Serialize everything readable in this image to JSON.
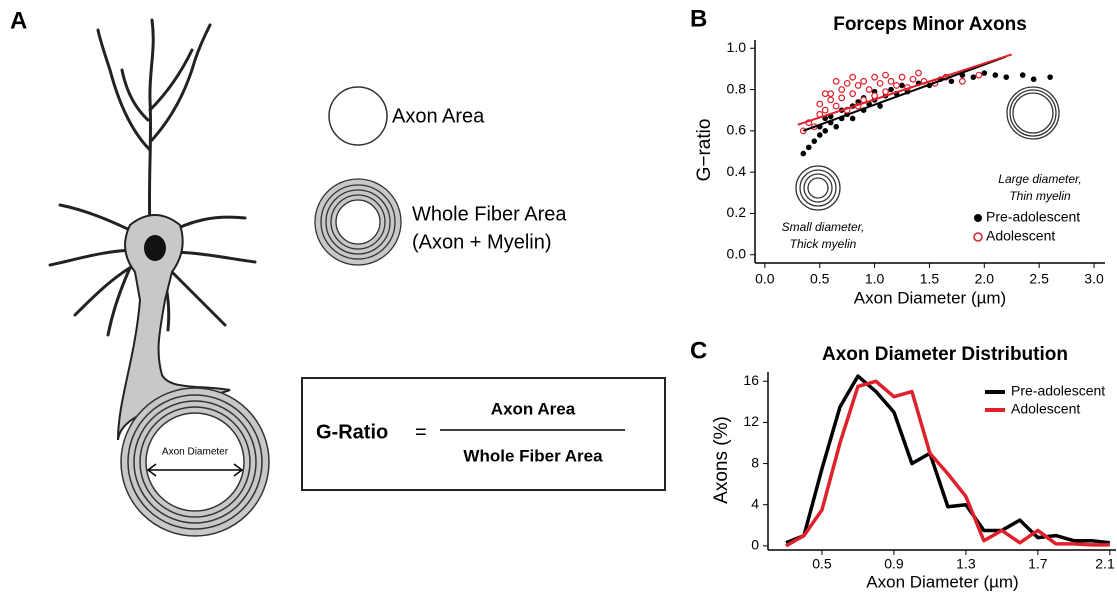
{
  "panel_labels": [
    "A",
    "B",
    "C"
  ],
  "diagram": {
    "axon_area_label": "Axon Area",
    "whole_fiber_label": "Whole Fiber Area",
    "whole_fiber_note": "(Axon + Myelin)",
    "axon_diameter_label": "Axon Diameter",
    "formula": {
      "lhs": "G-Ratio",
      "equals": "=",
      "numerator": "Axon Area",
      "denominator": "Whole Fiber Area"
    }
  },
  "chart_data": [
    {
      "type": "scatter",
      "title": "Forceps Minor Axons",
      "xlabel": "Axon Diameter (µm)",
      "ylabel": "G−ratio",
      "xlim": [
        -0.09,
        3.1
      ],
      "ylim": [
        -0.04,
        1.04
      ],
      "xticks": [
        {
          "value": 0,
          "label": "0.0"
        },
        0.5,
        {
          "value": 1,
          "label": "1.0"
        },
        1.5,
        {
          "value": 2,
          "label": "2.0"
        },
        2.5,
        {
          "value": 3,
          "label": "3.0"
        }
      ],
      "yticks": [
        {
          "value": 0,
          "label": "0.0"
        },
        0.2,
        0.4,
        0.6,
        0.8,
        {
          "value": 1,
          "label": "1.0"
        }
      ],
      "legend": "lower right",
      "series": [
        {
          "name": "Pre-adolescent",
          "color": "#000000",
          "marker": "filled",
          "x": [
            0.35,
            0.4,
            0.45,
            0.5,
            0.5,
            0.55,
            0.6,
            0.6,
            0.65,
            0.7,
            0.7,
            0.75,
            0.8,
            0.8,
            0.85,
            0.9,
            0.9,
            0.95,
            1.0,
            1.0,
            1.05,
            1.1,
            1.15,
            1.2,
            1.25,
            1.3,
            1.4,
            1.5,
            1.6,
            1.7,
            1.8,
            1.9,
            2.0,
            2.1,
            2.2,
            2.35,
            2.45,
            2.6,
            0.55,
            0.65
          ],
          "values": [
            0.49,
            0.52,
            0.55,
            0.58,
            0.62,
            0.6,
            0.64,
            0.67,
            0.62,
            0.66,
            0.7,
            0.68,
            0.72,
            0.66,
            0.74,
            0.7,
            0.76,
            0.73,
            0.75,
            0.79,
            0.72,
            0.77,
            0.8,
            0.78,
            0.82,
            0.79,
            0.83,
            0.82,
            0.85,
            0.84,
            0.87,
            0.86,
            0.88,
            0.87,
            0.86,
            0.87,
            0.85,
            0.86,
            0.66,
            0.72
          ]
        },
        {
          "name": "Adolescent",
          "color": "#e0202a",
          "marker": "open",
          "x": [
            0.35,
            0.4,
            0.45,
            0.5,
            0.5,
            0.55,
            0.6,
            0.6,
            0.65,
            0.7,
            0.7,
            0.75,
            0.75,
            0.8,
            0.8,
            0.85,
            0.9,
            0.9,
            0.95,
            1.0,
            1.0,
            1.05,
            1.1,
            1.1,
            1.15,
            1.2,
            1.25,
            1.3,
            1.35,
            1.45,
            1.55,
            1.65,
            1.8,
            1.95,
            0.55,
            0.65,
            0.85,
            1.4
          ],
          "values": [
            0.6,
            0.64,
            0.62,
            0.68,
            0.73,
            0.7,
            0.75,
            0.78,
            0.72,
            0.8,
            0.76,
            0.83,
            0.7,
            0.78,
            0.86,
            0.82,
            0.75,
            0.84,
            0.8,
            0.86,
            0.77,
            0.83,
            0.79,
            0.87,
            0.84,
            0.82,
            0.86,
            0.81,
            0.85,
            0.84,
            0.83,
            0.86,
            0.84,
            0.87,
            0.78,
            0.84,
            0.72,
            0.88
          ]
        }
      ],
      "fit_lines": [
        {
          "color": "#000000",
          "x": [
            0.35,
            2.2
          ],
          "values": [
            0.6,
            0.96
          ]
        },
        {
          "color": "#e0202a",
          "x": [
            0.3,
            2.25
          ],
          "values": [
            0.63,
            0.97
          ]
        }
      ],
      "annotations": [
        "Small diameter,",
        "Thick myelin",
        "Large diameter,",
        "Thin myelin"
      ]
    },
    {
      "type": "line",
      "title": "Axon Diameter Distribution",
      "xlabel": "Axon Diameter (µm)",
      "ylabel": "Axons (%)",
      "xlim": [
        0.2,
        2.14
      ],
      "ylim": [
        -0.4,
        16.9
      ],
      "xticks": [
        0.5,
        0.9,
        1.3,
        1.7,
        2.1
      ],
      "yticks": [
        0,
        4,
        8,
        12,
        16
      ],
      "legend": "upper right",
      "x": [
        0.3,
        0.4,
        0.5,
        0.6,
        0.7,
        0.8,
        0.9,
        1.0,
        1.1,
        1.2,
        1.3,
        1.4,
        1.5,
        1.6,
        1.7,
        1.8,
        1.9,
        2.0,
        2.1
      ],
      "series": [
        {
          "name": "Pre-adolescent",
          "color": "#000000",
          "values": [
            0.3,
            1,
            7.5,
            13.5,
            16.5,
            15,
            13,
            8,
            9,
            3.8,
            4,
            1.5,
            1.5,
            2.5,
            0.8,
            1,
            0.5,
            0.5,
            0.3
          ]
        },
        {
          "name": "Adolescent",
          "color": "#e0202a",
          "values": [
            0,
            1,
            3.5,
            10,
            15.5,
            16,
            14.5,
            15,
            9,
            7,
            4.8,
            0.5,
            1.5,
            0.3,
            1.5,
            0.2,
            0.2,
            0.1,
            0.1
          ]
        }
      ]
    }
  ]
}
